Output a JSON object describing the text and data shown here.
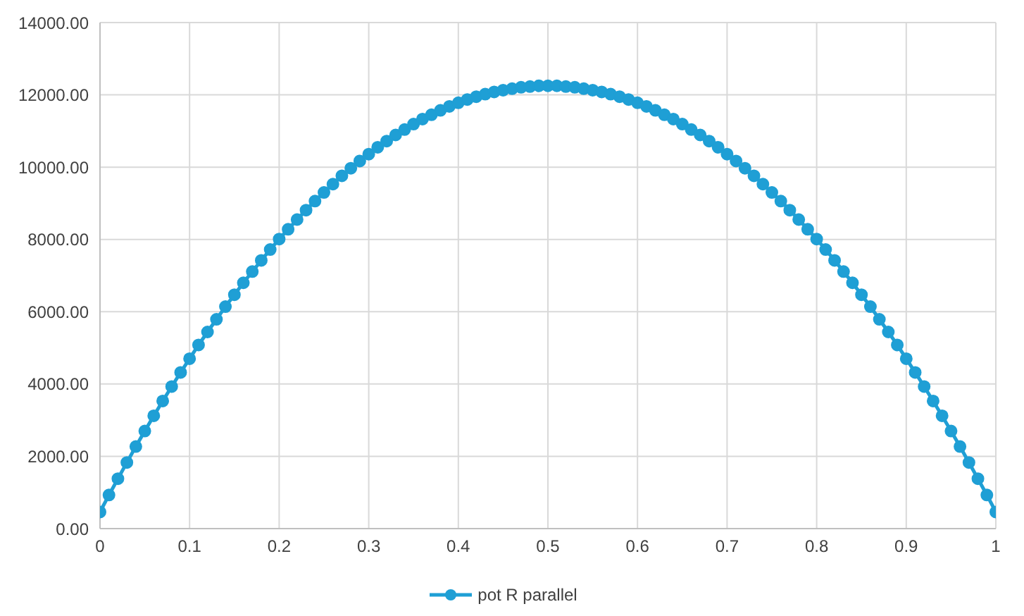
{
  "chart_data": {
    "type": "line",
    "x": [
      0,
      0.01,
      0.02,
      0.03,
      0.04,
      0.05,
      0.06,
      0.07,
      0.08,
      0.09,
      0.1,
      0.11,
      0.12,
      0.13,
      0.14,
      0.15,
      0.16,
      0.17,
      0.18,
      0.19,
      0.2,
      0.21,
      0.22,
      0.23,
      0.24,
      0.25,
      0.26,
      0.27,
      0.28,
      0.29,
      0.3,
      0.31,
      0.32,
      0.33,
      0.34,
      0.35,
      0.36,
      0.37,
      0.38,
      0.39,
      0.4,
      0.41,
      0.42,
      0.43,
      0.44,
      0.45,
      0.46,
      0.47,
      0.48,
      0.49,
      0.5,
      0.51,
      0.52,
      0.53,
      0.54,
      0.55,
      0.56,
      0.57,
      0.58,
      0.59,
      0.6,
      0.61,
      0.62,
      0.63,
      0.64,
      0.65,
      0.66,
      0.67,
      0.68,
      0.69,
      0.7,
      0.71,
      0.72,
      0.73,
      0.74,
      0.75,
      0.76,
      0.77,
      0.78,
      0.79,
      0.8,
      0.81,
      0.82,
      0.83,
      0.84,
      0.85,
      0.86,
      0.87,
      0.88,
      0.89,
      0.9,
      0.91,
      0.92,
      0.93,
      0.94,
      0.95,
      0.96,
      0.97,
      0.98,
      0.99,
      1
    ],
    "series": [
      {
        "name": "pot R parallel",
        "color": "#1f9fd5",
        "values": [
          460,
          930,
          1380,
          1830,
          2270,
          2700,
          3120,
          3530,
          3930,
          4320,
          4700,
          5080,
          5440,
          5790,
          6140,
          6470,
          6800,
          7110,
          7420,
          7720,
          8010,
          8280,
          8550,
          8810,
          9060,
          9300,
          9530,
          9760,
          9970,
          10170,
          10360,
          10550,
          10720,
          10890,
          11040,
          11190,
          11330,
          11450,
          11570,
          11680,
          11780,
          11870,
          11950,
          12020,
          12080,
          12130,
          12170,
          12210,
          12230,
          12250,
          12250,
          12250,
          12230,
          12210,
          12170,
          12130,
          12080,
          12020,
          11950,
          11870,
          11780,
          11680,
          11570,
          11450,
          11330,
          11190,
          11040,
          10890,
          10720,
          10550,
          10360,
          10170,
          9970,
          9760,
          9530,
          9300,
          9060,
          8810,
          8550,
          8280,
          8010,
          7720,
          7420,
          7110,
          6800,
          6470,
          6140,
          5790,
          5440,
          5080,
          4700,
          4320,
          3930,
          3530,
          3120,
          2700,
          2270,
          1830,
          1380,
          930,
          460
        ]
      }
    ],
    "xlim": [
      0,
      1
    ],
    "xticks": [
      0,
      0.1,
      0.2,
      0.3,
      0.4,
      0.5,
      0.6,
      0.7,
      0.8,
      0.9,
      1
    ],
    "ylim": [
      0,
      14000
    ],
    "yticks": [
      {
        "value": 0,
        "label": "0.00"
      },
      {
        "value": 2000,
        "label": "2000.00"
      },
      {
        "value": 4000,
        "label": "4000.00"
      },
      {
        "value": 6000,
        "label": "6000.00"
      },
      {
        "value": 8000,
        "label": "8000.00"
      },
      {
        "value": 10000,
        "label": "10000.00"
      },
      {
        "value": 12000,
        "label": "12000.00"
      },
      {
        "value": 14000,
        "label": "14000.00"
      }
    ],
    "grid": true,
    "legend": "bottom",
    "marker": "circle",
    "line_style": "solid"
  }
}
